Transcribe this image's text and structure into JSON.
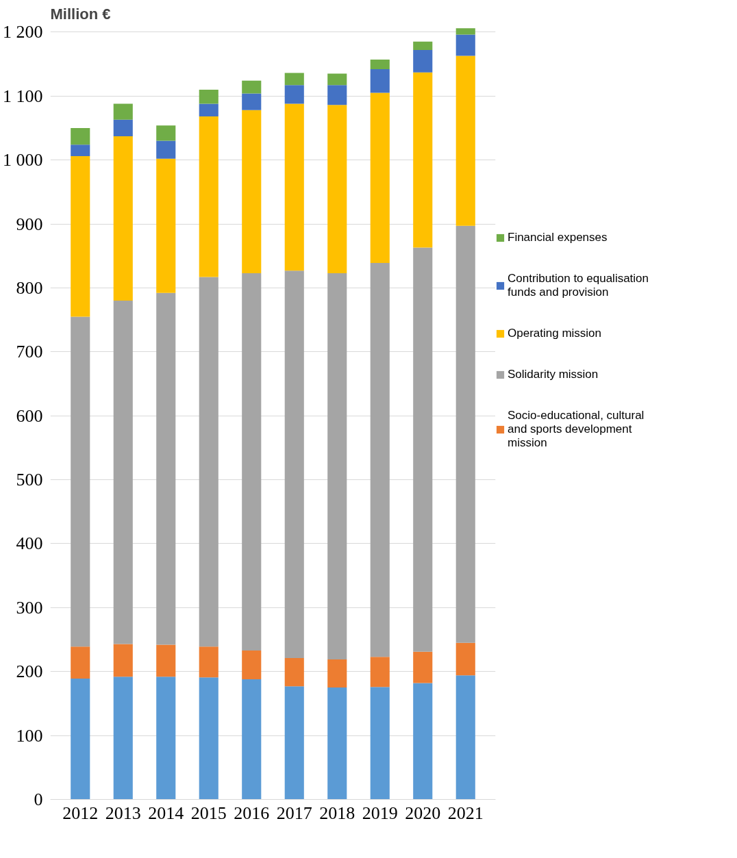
{
  "chart_data": {
    "type": "bar",
    "ylabel": "Million €",
    "stacked": true,
    "legend": "right",
    "grid": "y",
    "categories": [
      "2012",
      "2013",
      "2014",
      "2015",
      "2016",
      "2017",
      "2018",
      "2019",
      "2020",
      "2021"
    ],
    "ylim": [
      0,
      1210
    ],
    "yticks": [
      0,
      100,
      200,
      300,
      400,
      500,
      600,
      700,
      800,
      900,
      {
        "value": 1000,
        "label": "1 000"
      },
      {
        "value": 1100,
        "label": "1 100"
      },
      {
        "value": 1200,
        "label": "1 200"
      }
    ],
    "series": [
      {
        "color": "#5b9bd5",
        "values": [
          189,
          192,
          192,
          191,
          188,
          177,
          175,
          176,
          182,
          194
        ]
      },
      {
        "name": "Socio-educational, cultural and sports development mission",
        "color": "#ed7d31",
        "values": [
          50,
          51,
          50,
          48,
          45,
          44,
          44,
          47,
          49,
          51
        ]
      },
      {
        "name": "Solidarity mission",
        "color": "#a5a5a5",
        "values": [
          516,
          537,
          550,
          578,
          590,
          606,
          604,
          616,
          632,
          652
        ]
      },
      {
        "name": "Operating mission",
        "color": "#ffc000",
        "values": [
          251,
          257,
          210,
          251,
          255,
          261,
          263,
          266,
          274,
          266
        ]
      },
      {
        "name": "Contribution to equalisation funds and provision",
        "color": "#4472c4",
        "values": [
          18,
          26,
          28,
          20,
          26,
          29,
          31,
          37,
          35,
          33
        ]
      },
      {
        "name": "Financial expenses",
        "color": "#70ad47",
        "values": [
          26,
          25,
          24,
          22,
          20,
          19,
          18,
          15,
          13,
          10
        ]
      }
    ]
  }
}
